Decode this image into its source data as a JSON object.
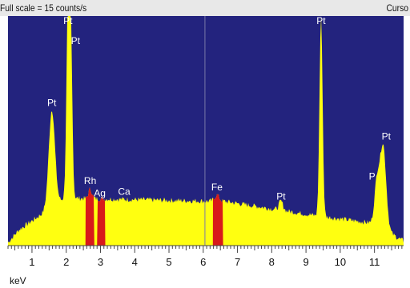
{
  "header": {
    "scale_text": "Full scale = 15  counts/s",
    "cursor_text": "Curso"
  },
  "colors": {
    "plot_bg": "#23237e",
    "spectrum_fill": "#ffff10",
    "highlight_fill": "#d81a1a",
    "label_color": "#ffffff",
    "axis_bg": "#ffffff",
    "tick_color": "#444444"
  },
  "chart_data": {
    "type": "area",
    "xlabel": "keV",
    "xlim": [
      0.3,
      11.85
    ],
    "ylim": [
      0,
      15
    ],
    "x_ticks": [
      1,
      2,
      3,
      4,
      5,
      6,
      7,
      8,
      9,
      10,
      11
    ],
    "cursor_kev": 6.05,
    "peaks": [
      {
        "label": "Pt",
        "energy": 1.58,
        "height": 8.9
      },
      {
        "label": "Pt",
        "energy": 2.05,
        "height": 15.0
      },
      {
        "label": "Pt",
        "energy": 2.13,
        "height": 13.9
      },
      {
        "label": "Rh",
        "energy": 2.7,
        "height": 3.7
      },
      {
        "label": "Ag",
        "energy": 2.98,
        "height": 3.0
      },
      {
        "label": "Ca",
        "energy": 3.69,
        "height": 3.1
      },
      {
        "label": "Fe",
        "energy": 6.4,
        "height": 3.3
      },
      {
        "label": "Pt",
        "energy": 8.27,
        "height": 2.9
      },
      {
        "label": "Pt",
        "energy": 9.44,
        "height": 15.0
      },
      {
        "label": "P",
        "energy": 11.07,
        "height": 4.0
      },
      {
        "label": "Pt",
        "energy": 11.25,
        "height": 6.6
      }
    ],
    "highlight_regions": [
      {
        "from": 2.56,
        "to": 2.82
      },
      {
        "from": 2.9,
        "to": 3.14
      },
      {
        "from": 6.28,
        "to": 6.58
      }
    ]
  }
}
